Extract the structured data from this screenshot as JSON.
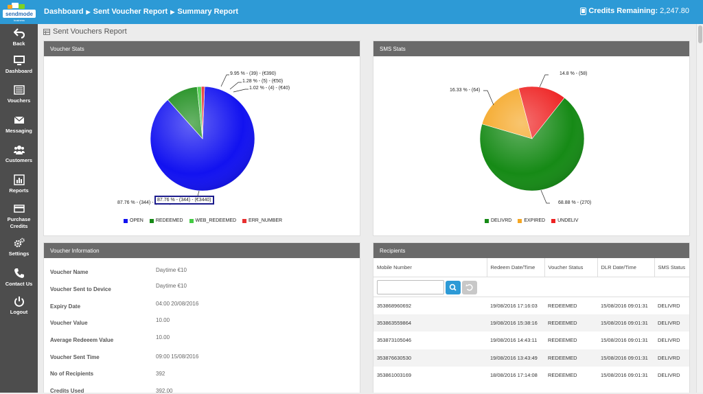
{
  "brand": {
    "logo_text": "sendmode",
    "logo_sub": "business"
  },
  "header": {
    "breadcrumb": [
      "Dashboard",
      "Sent Voucher Report",
      "Summary Report"
    ],
    "credits_label": "Credits Remaining:",
    "credits_value": "2,247.80"
  },
  "sidebar": {
    "items": [
      {
        "label": "Back",
        "icon": "back-arrow-icon"
      },
      {
        "label": "Dashboard",
        "icon": "monitor-icon"
      },
      {
        "label": "Vouchers",
        "icon": "list-icon"
      },
      {
        "label": "Messaging",
        "icon": "envelope-icon"
      },
      {
        "label": "Customers",
        "icon": "users-icon"
      },
      {
        "label": "Reports",
        "icon": "bar-chart-icon"
      },
      {
        "label": "Purchase Credits",
        "icon": "credit-card-icon"
      },
      {
        "label": "Settings",
        "icon": "gears-icon"
      },
      {
        "label": "Contact Us",
        "icon": "phone-icon"
      },
      {
        "label": "Logout",
        "icon": "power-icon"
      }
    ]
  },
  "page": {
    "title": "Sent Vouchers Report"
  },
  "voucher_stats": {
    "title": "Voucher Stats",
    "slice_labels": [
      "87.76 % - (344) - (€3440)",
      "9.95 % - (39) - (€390)",
      "1.28 % - (5) - (€50)",
      "1.02 % - (4) - (€40)"
    ],
    "highlight_label": "87.76 % - (344) - (€3440)",
    "legend": [
      "OPEN",
      "REDEEMED",
      "WEB_REDEEMED",
      "ERR_NUMBER"
    ],
    "colors": [
      "#1212f0",
      "#168a16",
      "#44cc44",
      "#e83030"
    ]
  },
  "sms_stats": {
    "title": "SMS Stats",
    "slice_labels": [
      "68.88 % - (270)",
      "16.33 % - (64)",
      "14.8 % - (58)"
    ],
    "legend": [
      "DELIVRD",
      "EXPIRED",
      "UNDELIV"
    ],
    "colors": [
      "#168a16",
      "#f5a623",
      "#ee2222"
    ]
  },
  "chart_data": [
    {
      "type": "pie",
      "categories": [
        "OPEN",
        "REDEEMED",
        "WEB_REDEEMED",
        "ERR_NUMBER"
      ],
      "values": [
        87.76,
        9.95,
        1.28,
        1.02
      ],
      "counts": [
        344,
        39,
        5,
        4
      ],
      "amounts": [
        3440,
        390,
        50,
        40
      ]
    },
    {
      "type": "pie",
      "categories": [
        "DELIVRD",
        "EXPIRED",
        "UNDELIV"
      ],
      "values": [
        68.88,
        16.33,
        14.8
      ],
      "counts": [
        270,
        64,
        58
      ]
    }
  ],
  "voucher_info": {
    "title": "Voucher Information",
    "rows": [
      {
        "label": "Voucher Name",
        "value": "Daytime €10"
      },
      {
        "label": "Voucher Sent to Device",
        "value": "Daytime €10"
      },
      {
        "label": "Expiry Date",
        "value": "04:00 20/08/2016"
      },
      {
        "label": "Voucher Value",
        "value": "10.00"
      },
      {
        "label": "Average Redeeem Value",
        "value": "10.00"
      },
      {
        "label": "Voucher Sent Time",
        "value": "09:00 15/08/2016"
      },
      {
        "label": "No of Recipients",
        "value": "392"
      },
      {
        "label": "Credits Used",
        "value": "392.00"
      }
    ]
  },
  "recipients": {
    "title": "Recipients",
    "columns": [
      "Mobile Number",
      "Redeem Date/Time",
      "Voucher Status",
      "DLR Date/Time",
      "SMS Status"
    ],
    "search_placeholder": "",
    "rows": [
      [
        "353868960692",
        "19/08/2016 17:16:03",
        "REDEEMED",
        "15/08/2016 09:01:31",
        "DELIVRD"
      ],
      [
        "353863559864",
        "19/08/2016 15:38:16",
        "REDEEMED",
        "15/08/2016 09:01:31",
        "DELIVRD"
      ],
      [
        "353873105046",
        "19/08/2016 14:43:11",
        "REDEEMED",
        "15/08/2016 09:01:31",
        "DELIVRD"
      ],
      [
        "353876630530",
        "19/08/2016 13:43:49",
        "REDEEMED",
        "15/08/2016 09:01:31",
        "DELIVRD"
      ],
      [
        "353861003169",
        "18/08/2016 17:14:08",
        "REDEEMED",
        "15/08/2016 09:01:31",
        "DELIVRD"
      ]
    ]
  },
  "colors": {
    "header": "#2d9ad6",
    "sidebar": "#4d4d4d",
    "panel_header": "#6a6a6a",
    "search_button": "#2d9ad6",
    "reset_button": "#c8c8c8"
  }
}
